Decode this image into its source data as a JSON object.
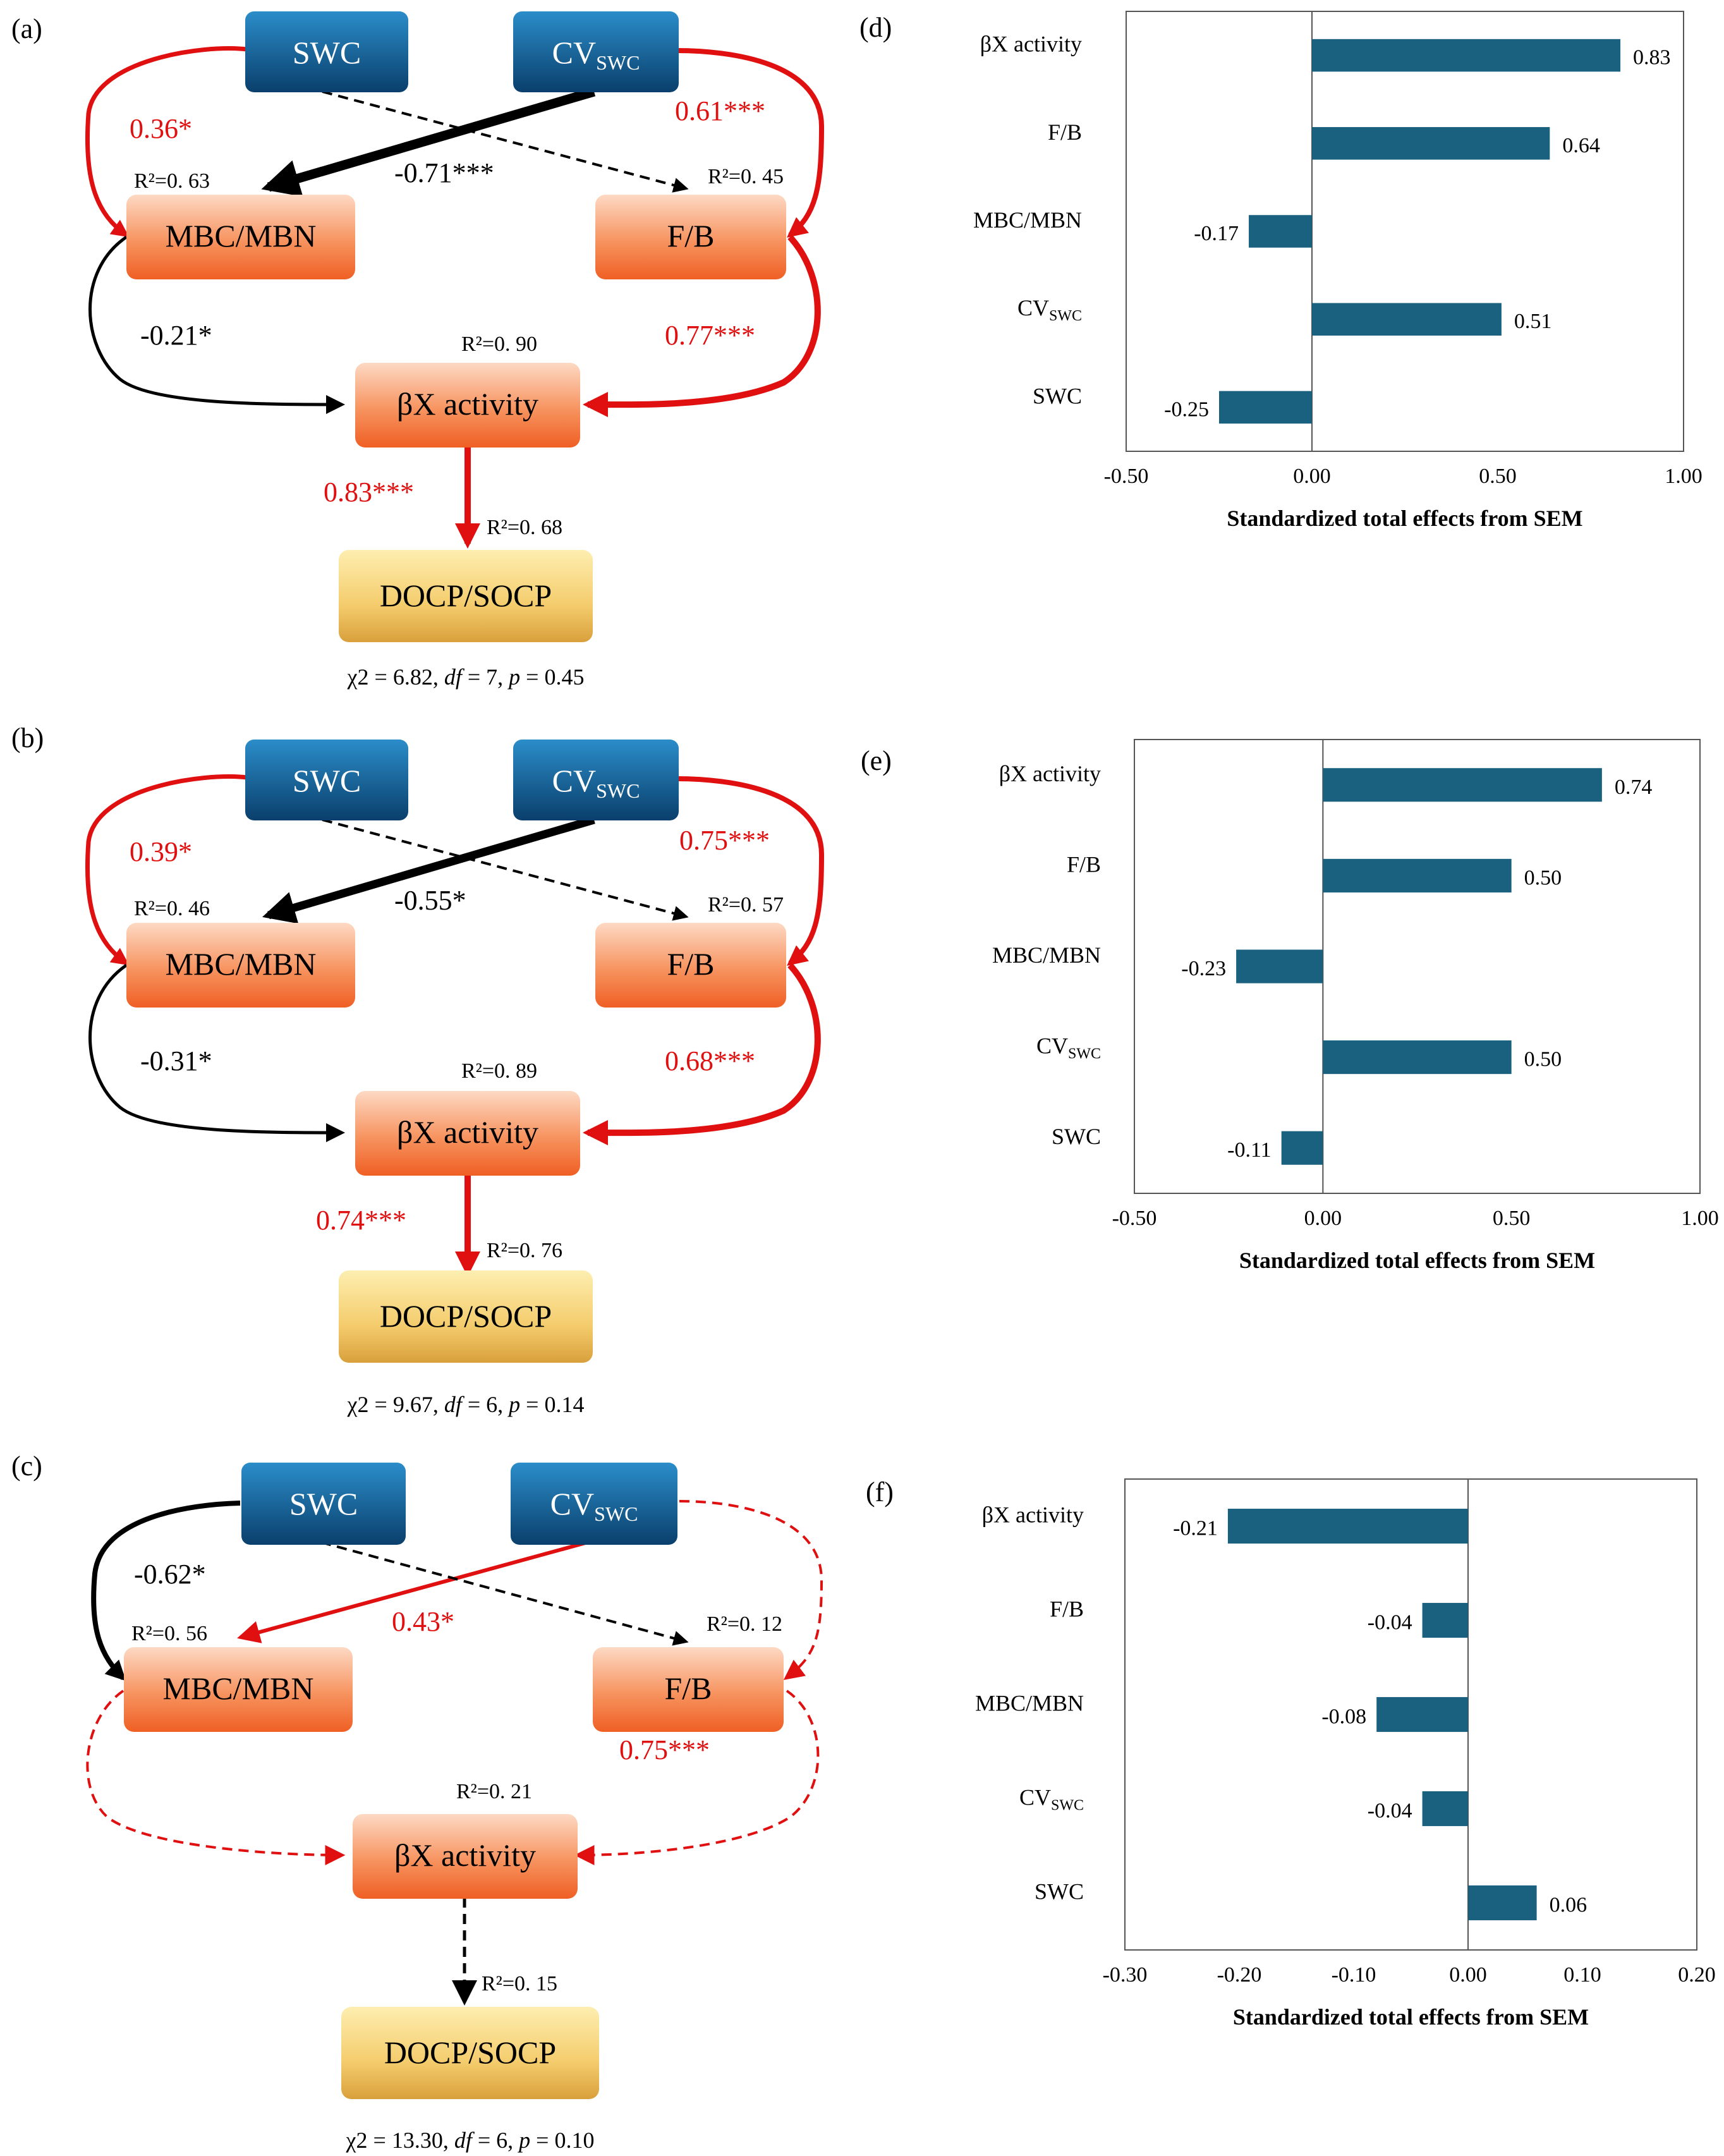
{
  "colors": {
    "red": "#e01010",
    "black": "#000000",
    "bar": "#1a6180",
    "blue_top": "#2b8dc9",
    "blue_bottom": "#0a3f6c",
    "orange_top": "#fdd9c4",
    "orange_bottom": "#f06a2c",
    "gold_top": "#fce9a3",
    "gold_bottom": "#dfad45"
  },
  "panels": [
    {
      "label": "(a)",
      "nodes": {
        "swc": "SWC",
        "cvswc_main": "CV",
        "cvswc_sub": "SWC",
        "mbc": "MBC/MBN",
        "fb": "F/B",
        "bx": "βX activity",
        "docp": "DOCP/SOCP"
      },
      "r2": {
        "mbc": "R²=0. 63",
        "fb": "R²=0. 45",
        "bx": "R²=0. 90",
        "docp": "R²=0. 68"
      },
      "paths": {
        "swc_mbc": "0.36*",
        "cv_fb": "0.61***",
        "cv_mbc": "-0.71***",
        "mbc_bx": "-0.21*",
        "fb_bx": "0.77***",
        "bx_docp": "0.83***"
      },
      "fit": {
        "chi": "χ2 = 6.82, ",
        "df_label": "df",
        "df_value": " = 7, ",
        "p_label": "p",
        "p_value": " = 0.45"
      }
    },
    {
      "label": "(b)",
      "nodes": {
        "swc": "SWC",
        "cvswc_main": "CV",
        "cvswc_sub": "SWC",
        "mbc": "MBC/MBN",
        "fb": "F/B",
        "bx": "βX activity",
        "docp": "DOCP/SOCP"
      },
      "r2": {
        "mbc": "R²=0. 46",
        "fb": "R²=0. 57",
        "bx": "R²=0. 89",
        "docp": "R²=0. 76"
      },
      "paths": {
        "swc_mbc": "0.39*",
        "cv_fb": "0.75***",
        "cv_mbc": "-0.55*",
        "mbc_bx": "-0.31*",
        "fb_bx": "0.68***",
        "bx_docp": "0.74***"
      },
      "fit": {
        "chi": "χ2 = 9.67, ",
        "df_label": "df",
        "df_value": " = 6, ",
        "p_label": "p",
        "p_value": " = 0.14"
      }
    },
    {
      "label": "(c)",
      "nodes": {
        "swc": "SWC",
        "cvswc_main": "CV",
        "cvswc_sub": "SWC",
        "mbc": "MBC/MBN",
        "fb": "F/B",
        "bx": "βX activity",
        "docp": "DOCP/SOCP"
      },
      "r2": {
        "mbc": "R²=0. 56",
        "fb": "R²=0. 12",
        "bx": "R²=0. 21",
        "docp": "R²=0. 15"
      },
      "paths": {
        "swc_mbc": "-0.62*",
        "cv_mbc": "0.43*",
        "fb_bx": "0.75***"
      },
      "fit": {
        "chi": "χ2 = 13.30, ",
        "df_label": "df",
        "df_value": " = 6, ",
        "p_label": "p",
        "p_value": " = 0.10"
      }
    }
  ],
  "chart_data": [
    {
      "type": "bar",
      "orientation": "horizontal",
      "panel_label": "(d)",
      "categories": [
        "βX activity",
        "F/B",
        "MBC/MBN",
        "CVSWC",
        "SWC"
      ],
      "category_display": [
        {
          "main": "βX activity",
          "sub": ""
        },
        {
          "main": "F/B",
          "sub": ""
        },
        {
          "main": "MBC/MBN",
          "sub": ""
        },
        {
          "main": "CV",
          "sub": "SWC"
        },
        {
          "main": "SWC",
          "sub": ""
        }
      ],
      "values": [
        0.83,
        0.64,
        -0.17,
        0.51,
        -0.25
      ],
      "value_labels": [
        "0.83",
        "0.64",
        "-0.17",
        "0.51",
        "-0.25"
      ],
      "xlim": [
        -0.5,
        1.0
      ],
      "xticks": [
        -0.5,
        0.0,
        0.5,
        1.0
      ],
      "xtick_labels": [
        "-0.50",
        "0.00",
        "0.50",
        "1.00"
      ],
      "xlabel": "Standardized total effects from SEM"
    },
    {
      "type": "bar",
      "orientation": "horizontal",
      "panel_label": "(e)",
      "categories": [
        "βX activity",
        "F/B",
        "MBC/MBN",
        "CVSWC",
        "SWC"
      ],
      "category_display": [
        {
          "main": "βX activity",
          "sub": ""
        },
        {
          "main": "F/B",
          "sub": ""
        },
        {
          "main": "MBC/MBN",
          "sub": ""
        },
        {
          "main": "CV",
          "sub": "SWC"
        },
        {
          "main": "SWC",
          "sub": ""
        }
      ],
      "values": [
        0.74,
        0.5,
        -0.23,
        0.5,
        -0.11
      ],
      "value_labels": [
        "0.74",
        "0.50",
        "-0.23",
        "0.50",
        "-0.11"
      ],
      "xlim": [
        -0.5,
        1.0
      ],
      "xticks": [
        -0.5,
        0.0,
        0.5,
        1.0
      ],
      "xtick_labels": [
        "-0.50",
        "0.00",
        "0.50",
        "1.00"
      ],
      "xlabel": "Standardized total effects from SEM"
    },
    {
      "type": "bar",
      "orientation": "horizontal",
      "panel_label": "(f)",
      "categories": [
        "βX activity",
        "F/B",
        "MBC/MBN",
        "CVSWC",
        "SWC"
      ],
      "category_display": [
        {
          "main": "βX activity",
          "sub": ""
        },
        {
          "main": "F/B",
          "sub": ""
        },
        {
          "main": "MBC/MBN",
          "sub": ""
        },
        {
          "main": "CV",
          "sub": "SWC"
        },
        {
          "main": "SWC",
          "sub": ""
        }
      ],
      "values": [
        -0.21,
        -0.04,
        -0.08,
        -0.04,
        0.06
      ],
      "value_labels": [
        "-0.21",
        "-0.04",
        "-0.08",
        "-0.04",
        "0.06"
      ],
      "xlim": [
        -0.3,
        0.2
      ],
      "xticks": [
        -0.3,
        -0.2,
        -0.1,
        0.0,
        0.1,
        0.2
      ],
      "xtick_labels": [
        "-0.30",
        "-0.20",
        "-0.10",
        "0.00",
        "0.10",
        "0.20"
      ],
      "xlabel": "Standardized total effects from SEM"
    }
  ]
}
